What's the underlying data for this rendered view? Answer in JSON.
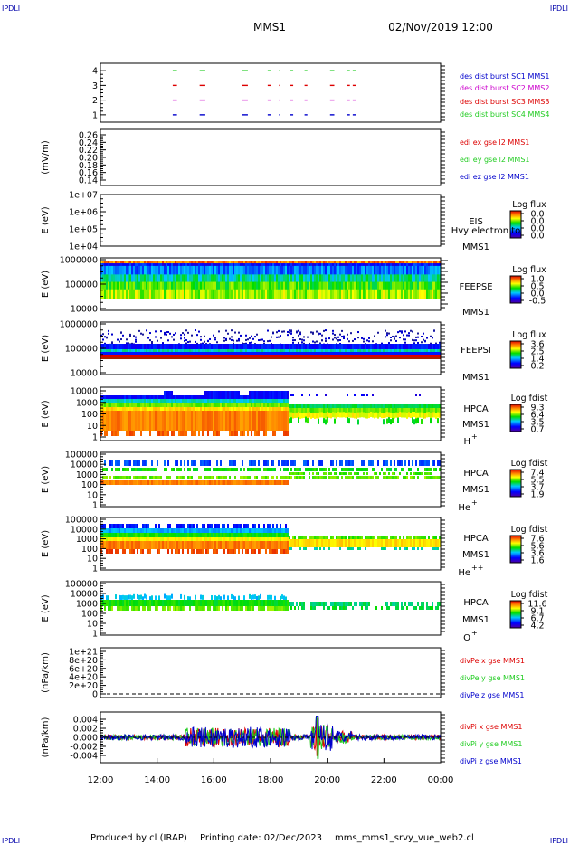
{
  "header": {
    "corner_tl": "IPDLI",
    "corner_tr": "IPDLI",
    "corner_bl": "IPDLI",
    "corner_br": "IPDLI",
    "spacecraft": "MMS1",
    "date": "02/Nov/2019 12:00"
  },
  "footer": {
    "produced": "Produced by cl (IRAP)",
    "printing_date": "Printing date: 02/Dec/2023",
    "script": "mms_mms1_srvy_vue_web2.cl"
  },
  "colors": {
    "red": "#dd0000",
    "green": "#22cc22",
    "blue": "#0000cc",
    "magenta": "#cc00cc",
    "frame": "#000000"
  },
  "chart_data": [
    {
      "type": "scatter",
      "panel": "burst",
      "ylim": [
        0.5,
        4.5
      ],
      "y_ticks": [
        "4",
        "3",
        "2",
        "1"
      ],
      "series": [
        {
          "name": "des dist burst SC1 MMS1",
          "y": 1,
          "color": "#0000cc"
        },
        {
          "name": "des dist burst SC2 MMS2",
          "y": 2,
          "color": "#cc00cc"
        },
        {
          "name": "des dist burst SC3 MMS3",
          "y": 3,
          "color": "#dd0000"
        },
        {
          "name": "des dist burst SC4 MMS4",
          "y": 4,
          "color": "#22cc22"
        }
      ],
      "intervals_h": [
        [
          2.55,
          2.7
        ],
        [
          3.5,
          3.7
        ],
        [
          5.0,
          5.2
        ],
        [
          5.9,
          6.0
        ],
        [
          6.3,
          6.35
        ],
        [
          6.7,
          6.8
        ],
        [
          7.2,
          7.3
        ],
        [
          8.1,
          8.25
        ],
        [
          8.7,
          8.8
        ],
        [
          8.9,
          9.0
        ]
      ]
    },
    {
      "type": "line",
      "panel": "edi",
      "ylabel": "(mV/m)",
      "y_ticks": [
        "0.26",
        "0.24",
        "0.22",
        "0.20",
        "0.18",
        "0.16",
        "0.14"
      ],
      "series": [
        {
          "name": "edi ex gse l2 MMS1",
          "color": "#dd0000"
        },
        {
          "name": "edi ey gse l2 MMS1",
          "color": "#22cc22"
        },
        {
          "name": "edi ez gse l2 MMS1",
          "color": "#0000cc"
        }
      ]
    },
    {
      "type": "heatmap",
      "panel": "eis",
      "ylabel": "E (eV)",
      "y_ticks": [
        "1e+07",
        "1e+06",
        "1e+05",
        "1e+04"
      ],
      "label_top": "EIS",
      "label_bottom": "MMS1",
      "overlay": "Hvy electron to",
      "colorbar_title": "Log flux",
      "colorbar_ticks": [
        "0.0",
        "0.0",
        "0.0",
        "0.0"
      ]
    },
    {
      "type": "heatmap",
      "panel": "feeps_e",
      "ylabel": "E (eV)",
      "y_ticks": [
        "1000000",
        "100000",
        "10000"
      ],
      "label_top": "FEEPSE",
      "label_bottom": "MMS1",
      "colorbar_title": "Log flux",
      "colorbar_ticks": [
        "1.0",
        "0.5",
        "0.0",
        "-0.5"
      ]
    },
    {
      "type": "heatmap",
      "panel": "feeps_i",
      "ylabel": "E (eV)",
      "y_ticks": [
        "1000000",
        "100000",
        "10000"
      ],
      "label_top": "FEEPSI",
      "label_bottom": "MMS1",
      "colorbar_title": "Log flux",
      "colorbar_ticks": [
        "3.6",
        "2.5",
        "1.4",
        "0.2"
      ]
    },
    {
      "type": "heatmap",
      "panel": "hpca_h",
      "ylabel": "E (eV)",
      "y_ticks": [
        "10000",
        "1000",
        "100",
        "10",
        "1"
      ],
      "label_top": "HPCA",
      "label_bottom": "MMS1",
      "species": "H",
      "species_sup": "+",
      "colorbar_title": "Log fdist",
      "colorbar_ticks": [
        "9.3",
        "6.4",
        "3.5",
        "0.7"
      ]
    },
    {
      "type": "heatmap",
      "panel": "hpca_he",
      "ylabel": "E (eV)",
      "y_ticks": [
        "100000",
        "10000",
        "1000",
        "100",
        "10",
        "1"
      ],
      "label_top": "HPCA",
      "label_bottom": "MMS1",
      "species": "He",
      "species_sup": "+",
      "colorbar_title": "Log fdist",
      "colorbar_ticks": [
        "7.4",
        "5.5",
        "3.7",
        "1.9"
      ]
    },
    {
      "type": "heatmap",
      "panel": "hpca_hepp",
      "ylabel": "E (eV)",
      "y_ticks": [
        "100000",
        "10000",
        "1000",
        "100",
        "10",
        "1"
      ],
      "label_top": "HPCA",
      "label_bottom": "MMS1",
      "species": "He",
      "species_sup": "++",
      "colorbar_title": "Log fdist",
      "colorbar_ticks": [
        "7.6",
        "5.6",
        "3.6",
        "1.6"
      ]
    },
    {
      "type": "heatmap",
      "panel": "hpca_o",
      "ylabel": "E (eV)",
      "y_ticks": [
        "100000",
        "10000",
        "1000",
        "100",
        "10",
        "1"
      ],
      "label_top": "HPCA",
      "label_bottom": "MMS1",
      "species": "O",
      "species_sup": "+",
      "colorbar_title": "Log fdist",
      "colorbar_ticks": [
        "11.6",
        "9.1",
        "6.7",
        "4.2"
      ]
    },
    {
      "type": "line",
      "panel": "divpe",
      "ylabel": "(nPa/km)",
      "y_ticks": [
        "1e+21",
        "8e+20",
        "6e+20",
        "4e+20",
        "2e+20",
        "0"
      ],
      "ylim": [
        0,
        1e+21
      ],
      "series": [
        {
          "name": "divPe x gse MMS1",
          "color": "#dd0000"
        },
        {
          "name": "divPe y gse MMS1",
          "color": "#22cc22"
        },
        {
          "name": "divPe z gse MMS1",
          "color": "#0000cc"
        }
      ]
    },
    {
      "type": "line",
      "panel": "divpi",
      "ylabel": "(nPa/km)",
      "y_ticks": [
        "0.004",
        "0.002",
        "0.000",
        "-0.002",
        "-0.004"
      ],
      "ylim": [
        -0.005,
        0.005
      ],
      "series": [
        {
          "name": "divPi x gse MMS1",
          "color": "#dd0000"
        },
        {
          "name": "divPi y gse MMS1",
          "color": "#22cc22"
        },
        {
          "name": "divPi z gse MMS1",
          "color": "#0000cc"
        }
      ]
    }
  ],
  "x_axis": {
    "ticks": [
      "12:00",
      "14:00",
      "16:00",
      "18:00",
      "20:00",
      "22:00",
      "00:00"
    ],
    "xlim_hours": [
      0,
      12
    ]
  }
}
